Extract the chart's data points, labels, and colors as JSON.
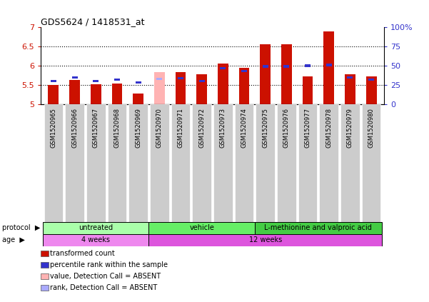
{
  "title": "GDS5624 / 1418531_at",
  "samples": [
    "GSM1520965",
    "GSM1520966",
    "GSM1520967",
    "GSM1520968",
    "GSM1520969",
    "GSM1520970",
    "GSM1520971",
    "GSM1520972",
    "GSM1520973",
    "GSM1520974",
    "GSM1520975",
    "GSM1520976",
    "GSM1520977",
    "GSM1520978",
    "GSM1520979",
    "GSM1520980"
  ],
  "bar_values": [
    5.5,
    5.62,
    5.51,
    5.54,
    5.27,
    5.83,
    5.84,
    5.77,
    6.05,
    5.95,
    6.56,
    6.56,
    5.72,
    6.89,
    5.78,
    5.72
  ],
  "rank_values": [
    30,
    35,
    30,
    32,
    28,
    33,
    34,
    30,
    47,
    43,
    49,
    49,
    50,
    51,
    35,
    32
  ],
  "absent": [
    false,
    false,
    false,
    false,
    false,
    true,
    false,
    false,
    false,
    false,
    false,
    false,
    false,
    false,
    false,
    false
  ],
  "bar_color_normal": "#cc1100",
  "bar_color_absent": "#ffb3b3",
  "rank_color_normal": "#3333cc",
  "rank_color_absent": "#aaaaff",
  "ylim": [
    5.0,
    7.0
  ],
  "yticks": [
    5.0,
    5.5,
    6.0,
    6.5,
    7.0
  ],
  "ytick_labels": [
    "5",
    "5.5",
    "6",
    "6.5",
    "7"
  ],
  "right_yticks": [
    0,
    25,
    50,
    75,
    100
  ],
  "right_ytick_labels": [
    "0",
    "25",
    "50",
    "75",
    "100%"
  ],
  "protocol_groups": [
    {
      "label": "untreated",
      "start": 0,
      "end": 4,
      "color": "#aaffaa"
    },
    {
      "label": "vehicle",
      "start": 5,
      "end": 9,
      "color": "#66ee66"
    },
    {
      "label": "L-methionine and valproic acid",
      "start": 10,
      "end": 15,
      "color": "#44cc44"
    }
  ],
  "age_groups": [
    {
      "label": "4 weeks",
      "start": 0,
      "end": 4,
      "color": "#ee88ee"
    },
    {
      "label": "12 weeks",
      "start": 5,
      "end": 15,
      "color": "#dd55dd"
    }
  ],
  "bar_width": 0.5,
  "background_color": "#ffffff",
  "grid_color": "#000000",
  "tick_label_bg": "#cccccc"
}
